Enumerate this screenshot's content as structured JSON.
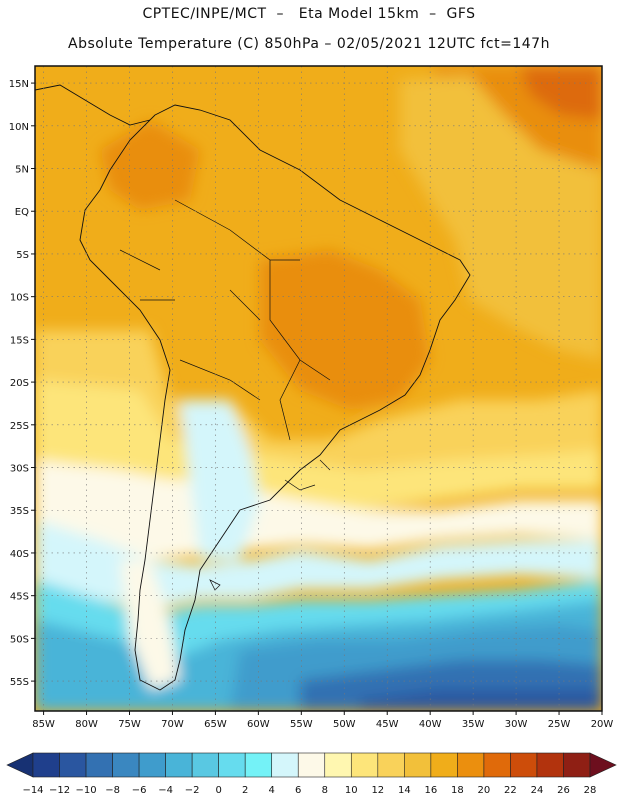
{
  "header": {
    "line1": "CPTEC/INPE/MCT  –   Eta Model 15km  –  GFS",
    "line2": "Absolute Temperature (C) 850hPa – 02/05/2021 12UTC fct=147h"
  },
  "map": {
    "lat_ticks": [
      {
        "label": "15N",
        "value": 15
      },
      {
        "label": "10N",
        "value": 10
      },
      {
        "label": "5N",
        "value": 5
      },
      {
        "label": "EQ",
        "value": 0
      },
      {
        "label": "5S",
        "value": -5
      },
      {
        "label": "10S",
        "value": -10
      },
      {
        "label": "15S",
        "value": -15
      },
      {
        "label": "20S",
        "value": -20
      },
      {
        "label": "25S",
        "value": -25
      },
      {
        "label": "30S",
        "value": -30
      },
      {
        "label": "35S",
        "value": -35
      },
      {
        "label": "40S",
        "value": -40
      },
      {
        "label": "45S",
        "value": -45
      },
      {
        "label": "50S",
        "value": -50
      },
      {
        "label": "55S",
        "value": -55
      }
    ],
    "lon_ticks": [
      {
        "label": "85W",
        "value": -85
      },
      {
        "label": "80W",
        "value": -80
      },
      {
        "label": "75W",
        "value": -75
      },
      {
        "label": "70W",
        "value": -70
      },
      {
        "label": "65W",
        "value": -65
      },
      {
        "label": "60W",
        "value": -60
      },
      {
        "label": "55W",
        "value": -55
      },
      {
        "label": "50W",
        "value": -50
      },
      {
        "label": "45W",
        "value": -45
      },
      {
        "label": "40W",
        "value": -40
      },
      {
        "label": "35W",
        "value": -35
      },
      {
        "label": "30W",
        "value": -30
      },
      {
        "label": "25W",
        "value": -25
      },
      {
        "label": "20W",
        "value": -20
      }
    ],
    "lat_range": [
      -58.5,
      17
    ],
    "lon_range": [
      -86,
      -20
    ]
  },
  "colorbar": {
    "labels": [
      "-14",
      "-12",
      "-10",
      "-8",
      "-6",
      "-4",
      "-2",
      "0",
      "2",
      "4",
      "6",
      "8",
      "10",
      "12",
      "14",
      "16",
      "18",
      "20",
      "22",
      "24",
      "26",
      "28"
    ],
    "colors": [
      "#1f3f8c",
      "#2a56a0",
      "#3371b2",
      "#3a87c0",
      "#3f9ccc",
      "#49b4d8",
      "#59c8e2",
      "#66dcee",
      "#74f2f7",
      "#d4f6fb",
      "#fdf9e8",
      "#fff7b0",
      "#fde57a",
      "#f9d25a",
      "#f2c03a",
      "#f0ad1a",
      "#eb8f0e",
      "#e06a0a",
      "#cd4d0a",
      "#b2330d",
      "#8f1f14"
    ],
    "left_arrow_color": "#173173",
    "right_arrow_color": "#6d0f1e"
  }
}
